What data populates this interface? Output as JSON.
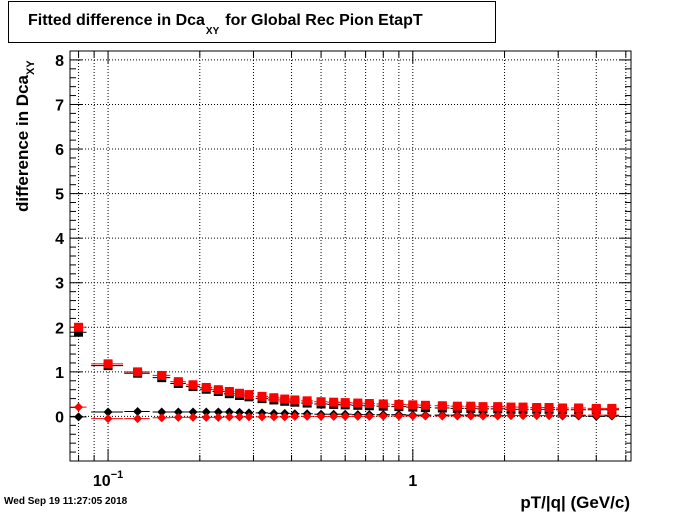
{
  "title": {
    "main": "Fitted difference in Dca",
    "sub": "XY",
    "rest": "for Global Rec Pion EtapT"
  },
  "datestamp": "Wed Sep 19 11:27:05 2018",
  "chart_data": {
    "type": "scatter",
    "title": "Fitted difference in Dca_XY for Global Rec Pion EtapT",
    "xlabel": "pT/|q| (GeV/c)",
    "ylabel_main": "difference in Dca",
    "ylabel_sub": "XY",
    "x_scale": "log",
    "xlim": [
      0.075,
      5.2
    ],
    "ylim": [
      -1,
      8.2
    ],
    "grid": true,
    "y_ticks": [
      0,
      1,
      2,
      3,
      4,
      5,
      6,
      7,
      8
    ],
    "x_tick_labels": [
      {
        "value": 0.1,
        "base": "10",
        "exp": "−1"
      },
      {
        "value": 1,
        "base": "1",
        "exp": ""
      }
    ],
    "x": [
      0.08,
      0.1,
      0.125,
      0.15,
      0.17,
      0.19,
      0.21,
      0.23,
      0.25,
      0.27,
      0.29,
      0.32,
      0.35,
      0.38,
      0.41,
      0.45,
      0.5,
      0.55,
      0.6,
      0.66,
      0.72,
      0.8,
      0.9,
      1.0,
      1.1,
      1.25,
      1.4,
      1.55,
      1.7,
      1.9,
      2.1,
      2.3,
      2.55,
      2.8,
      3.1,
      3.5,
      4.0,
      4.5
    ],
    "x_err": [
      0.005,
      0.012,
      0.012,
      0.01,
      0.01,
      0.01,
      0.01,
      0.01,
      0.01,
      0.01,
      0.01,
      0.015,
      0.015,
      0.015,
      0.015,
      0.02,
      0.025,
      0.025,
      0.03,
      0.03,
      0.03,
      0.04,
      0.05,
      0.05,
      0.05,
      0.07,
      0.07,
      0.07,
      0.08,
      0.1,
      0.1,
      0.1,
      0.12,
      0.13,
      0.15,
      0.2,
      0.25,
      0.25
    ],
    "series": [
      {
        "marker": "square",
        "color": "#000000",
        "offset_x": 0.0,
        "offset_y": -0.06,
        "values": [
          1.95,
          1.2,
          1.03,
          0.93,
          0.8,
          0.73,
          0.67,
          0.62,
          0.57,
          0.53,
          0.5,
          0.46,
          0.43,
          0.4,
          0.38,
          0.36,
          0.34,
          0.33,
          0.32,
          0.31,
          0.3,
          0.29,
          0.28,
          0.27,
          0.26,
          0.25,
          0.24,
          0.24,
          0.23,
          0.23,
          0.22,
          0.22,
          0.22,
          0.22,
          0.21,
          0.21,
          0.21,
          0.21
        ]
      },
      {
        "marker": "square",
        "color": "#ff0000",
        "offset_x": 0.0,
        "offset_y": 0.0,
        "values": [
          2.0,
          1.18,
          1.0,
          0.92,
          0.78,
          0.71,
          0.65,
          0.6,
          0.56,
          0.52,
          0.49,
          0.45,
          0.42,
          0.39,
          0.37,
          0.35,
          0.33,
          0.32,
          0.31,
          0.3,
          0.29,
          0.28,
          0.27,
          0.26,
          0.25,
          0.24,
          0.23,
          0.23,
          0.22,
          0.22,
          0.21,
          0.21,
          0.2,
          0.2,
          0.19,
          0.19,
          0.18,
          0.18
        ]
      },
      {
        "marker": "diamond",
        "color": "#000000",
        "offset_x": 0.0,
        "offset_y": 0.0,
        "values": [
          -0.01,
          0.1,
          0.11,
          0.1,
          0.1,
          0.1,
          0.1,
          0.1,
          0.1,
          0.09,
          0.08,
          0.08,
          0.07,
          0.07,
          0.06,
          0.06,
          0.05,
          0.05,
          0.05,
          0.04,
          0.04,
          0.04,
          0.04,
          0.03,
          0.03,
          0.03,
          0.03,
          0.03,
          0.03,
          0.02,
          0.02,
          0.02,
          0.02,
          0.02,
          0.01,
          0.01,
          0.0,
          0.01
        ]
      },
      {
        "marker": "diamond",
        "color": "#ff0000",
        "offset_x": 0.0,
        "offset_y": 0.0,
        "values": [
          0.21,
          -0.05,
          -0.05,
          -0.03,
          -0.02,
          -0.02,
          -0.02,
          -0.02,
          -0.01,
          -0.01,
          -0.01,
          -0.01,
          -0.01,
          -0.01,
          0.0,
          0.0,
          0.0,
          0.0,
          0.0,
          0.0,
          0.0,
          0.01,
          0.01,
          0.01,
          0.01,
          0.01,
          0.01,
          0.01,
          0.01,
          0.01,
          0.02,
          0.02,
          0.02,
          0.02,
          0.02,
          0.03,
          0.03,
          0.03
        ]
      }
    ]
  }
}
